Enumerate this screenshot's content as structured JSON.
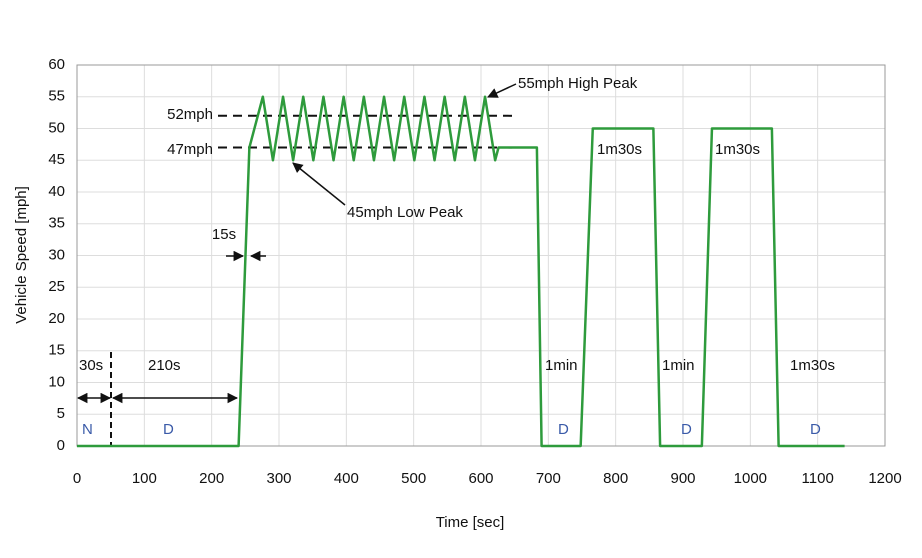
{
  "chart_data": {
    "type": "line",
    "xlabel": "Time [sec]",
    "ylabel": "Vehicle Speed [mph]",
    "x": [
      0,
      240,
      256,
      276,
      291,
      306,
      321,
      336,
      351,
      366,
      381,
      396,
      411,
      426,
      441,
      456,
      471,
      486,
      501,
      516,
      531,
      546,
      561,
      576,
      591,
      606,
      621,
      626,
      683,
      690,
      748,
      766,
      856,
      866,
      928,
      943,
      1032,
      1042,
      1140
    ],
    "series": [
      {
        "color": "#2e9b3c",
        "values": [
          0,
          0,
          47,
          55,
          45,
          55,
          45,
          55,
          45,
          55,
          45,
          55,
          45,
          55,
          45,
          55,
          45,
          55,
          45,
          55,
          45,
          55,
          45,
          55,
          45,
          55,
          45,
          47,
          47,
          0,
          0,
          50,
          50,
          0,
          0,
          50,
          50,
          0,
          0
        ]
      }
    ],
    "xlim": [
      0,
      1200
    ],
    "xticks": [
      0,
      100,
      200,
      300,
      400,
      500,
      600,
      700,
      800,
      900,
      1000,
      1100,
      1200
    ],
    "ylim": [
      0,
      60
    ],
    "yticks": [
      0,
      5,
      10,
      15,
      20,
      25,
      30,
      35,
      40,
      45,
      50,
      55,
      60
    ],
    "grid": true,
    "reference_lines": [
      52,
      47
    ],
    "annotations": [
      "52mph",
      "47mph",
      "55mph High Peak",
      "45mph Low Peak",
      "15s",
      "30s",
      "210s",
      "1min",
      "1m30s",
      "1min",
      "1m30s",
      "1m30s"
    ],
    "mode_labels": {
      "color": "#3a5aa8",
      "labels": [
        "N",
        "D",
        "D",
        "D",
        "D"
      ]
    }
  }
}
